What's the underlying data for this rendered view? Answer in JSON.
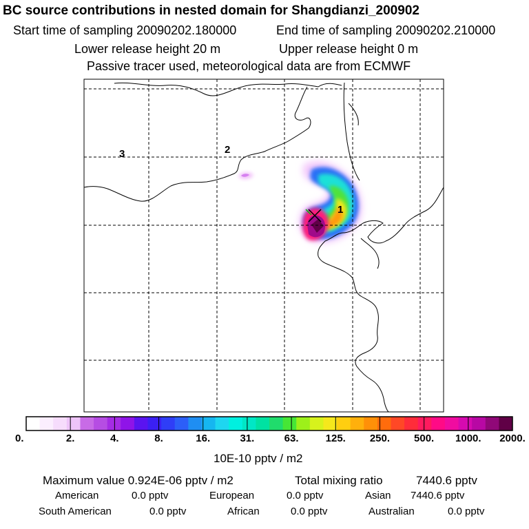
{
  "header": {
    "title": "BC  source contributions in nested domain for Shangdianzi_200902",
    "start_time": "Start time of sampling 20090202.180000",
    "end_time": "End time of sampling 20090202.210000",
    "lower_height": "Lower release height   20 m",
    "upper_height": "Upper release height    0 m",
    "tracer_note": "Passive tracer used, meteorological data are from ECMWF"
  },
  "map": {
    "markers": [
      "1",
      "2",
      "3"
    ]
  },
  "colorbar": {
    "labels": [
      "0.",
      "2.",
      "4.",
      "8.",
      "16.",
      "31.",
      "63.",
      "125.",
      "250.",
      "500.",
      "1000.",
      "2000."
    ],
    "units": "10E-10 pptv / m2",
    "colors": [
      "#ffffff",
      "#fbeefe",
      "#f6dcfc",
      "#eec4f9",
      "#c86be6",
      "#b64de3",
      "#a52ce4",
      "#8f14e8",
      "#5a14f0",
      "#3b20f4",
      "#2f3ef7",
      "#2c5ff8",
      "#1f8ef2",
      "#16b6f0",
      "#1ed6f0",
      "#00f0e0",
      "#00e7c6",
      "#00e2a2",
      "#20dc6c",
      "#46e636",
      "#9df01a",
      "#d7f21c",
      "#f5e81c",
      "#ffce10",
      "#ffb00c",
      "#ff9008",
      "#ff6c0c",
      "#ff4826",
      "#ff2c3a",
      "#ff1a5e",
      "#ff0a86",
      "#f00ca0",
      "#d60ab0",
      "#b808a4",
      "#900878",
      "#600046"
    ]
  },
  "footer": {
    "max_label": "Maximum value  0.924E-06 pptv / m2",
    "total_label": "Total mixing ratio",
    "total_value": "7440.6 pptv",
    "american_label": "American",
    "american_value": "0.0 pptv",
    "european_label": "European",
    "european_value": "0.0 pptv",
    "asian_label": "Asian",
    "asian_value": "7440.6 pptv",
    "south_american_label": "South American",
    "south_american_value": "0.0 pptv",
    "african_label": "African",
    "african_value": "0.0 pptv",
    "australian_label": "Australian",
    "australian_value": "0.0 pptv"
  }
}
